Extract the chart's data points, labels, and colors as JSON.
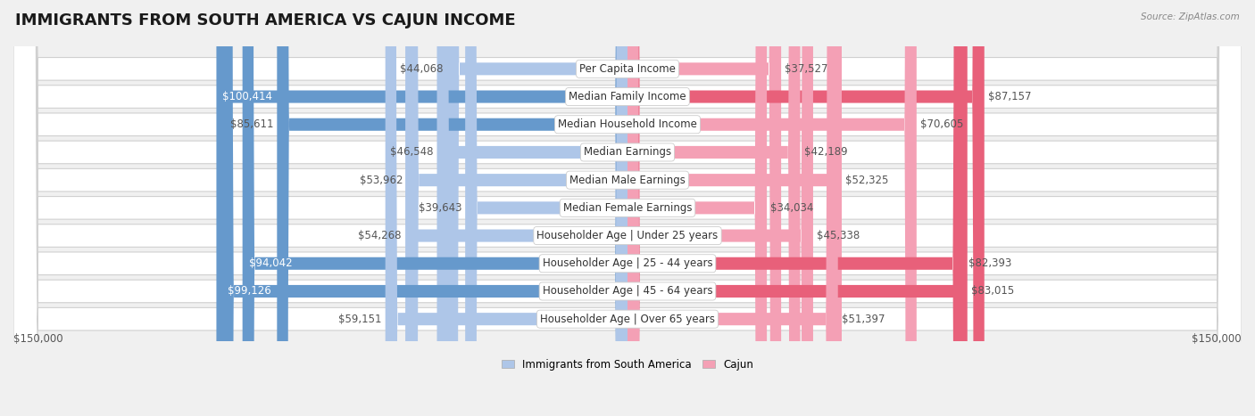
{
  "title": "IMMIGRANTS FROM SOUTH AMERICA VS CAJUN INCOME",
  "source": "Source: ZipAtlas.com",
  "categories": [
    "Per Capita Income",
    "Median Family Income",
    "Median Household Income",
    "Median Earnings",
    "Median Male Earnings",
    "Median Female Earnings",
    "Householder Age | Under 25 years",
    "Householder Age | 25 - 44 years",
    "Householder Age | 45 - 64 years",
    "Householder Age | Over 65 years"
  ],
  "left_values": [
    44068,
    100414,
    85611,
    46548,
    53962,
    39643,
    54268,
    94042,
    99126,
    59151
  ],
  "right_values": [
    37527,
    87157,
    70605,
    42189,
    52325,
    34034,
    45338,
    82393,
    83015,
    51397
  ],
  "left_labels": [
    "$44,068",
    "$100,414",
    "$85,611",
    "$46,548",
    "$53,962",
    "$39,643",
    "$54,268",
    "$94,042",
    "$99,126",
    "$59,151"
  ],
  "right_labels": [
    "$37,527",
    "$87,157",
    "$70,605",
    "$42,189",
    "$52,325",
    "$34,034",
    "$45,338",
    "$82,393",
    "$83,015",
    "$51,397"
  ],
  "left_color_light": "#aec6e8",
  "left_color_strong": "#6699cc",
  "right_color_light": "#f4a0b5",
  "right_color_strong": "#e8607a",
  "left_label_inside": [
    false,
    true,
    false,
    false,
    false,
    false,
    false,
    true,
    true,
    false
  ],
  "max_value": 150000,
  "xlabel_left": "$150,000",
  "xlabel_right": "$150,000",
  "legend_left": "Immigrants from South America",
  "legend_right": "Cajun",
  "background_color": "#f0f0f0",
  "row_bg_color": "#ffffff",
  "row_alt_color": "#f0f0f0",
  "title_fontsize": 13,
  "label_fontsize": 8.5,
  "category_fontsize": 8.5
}
